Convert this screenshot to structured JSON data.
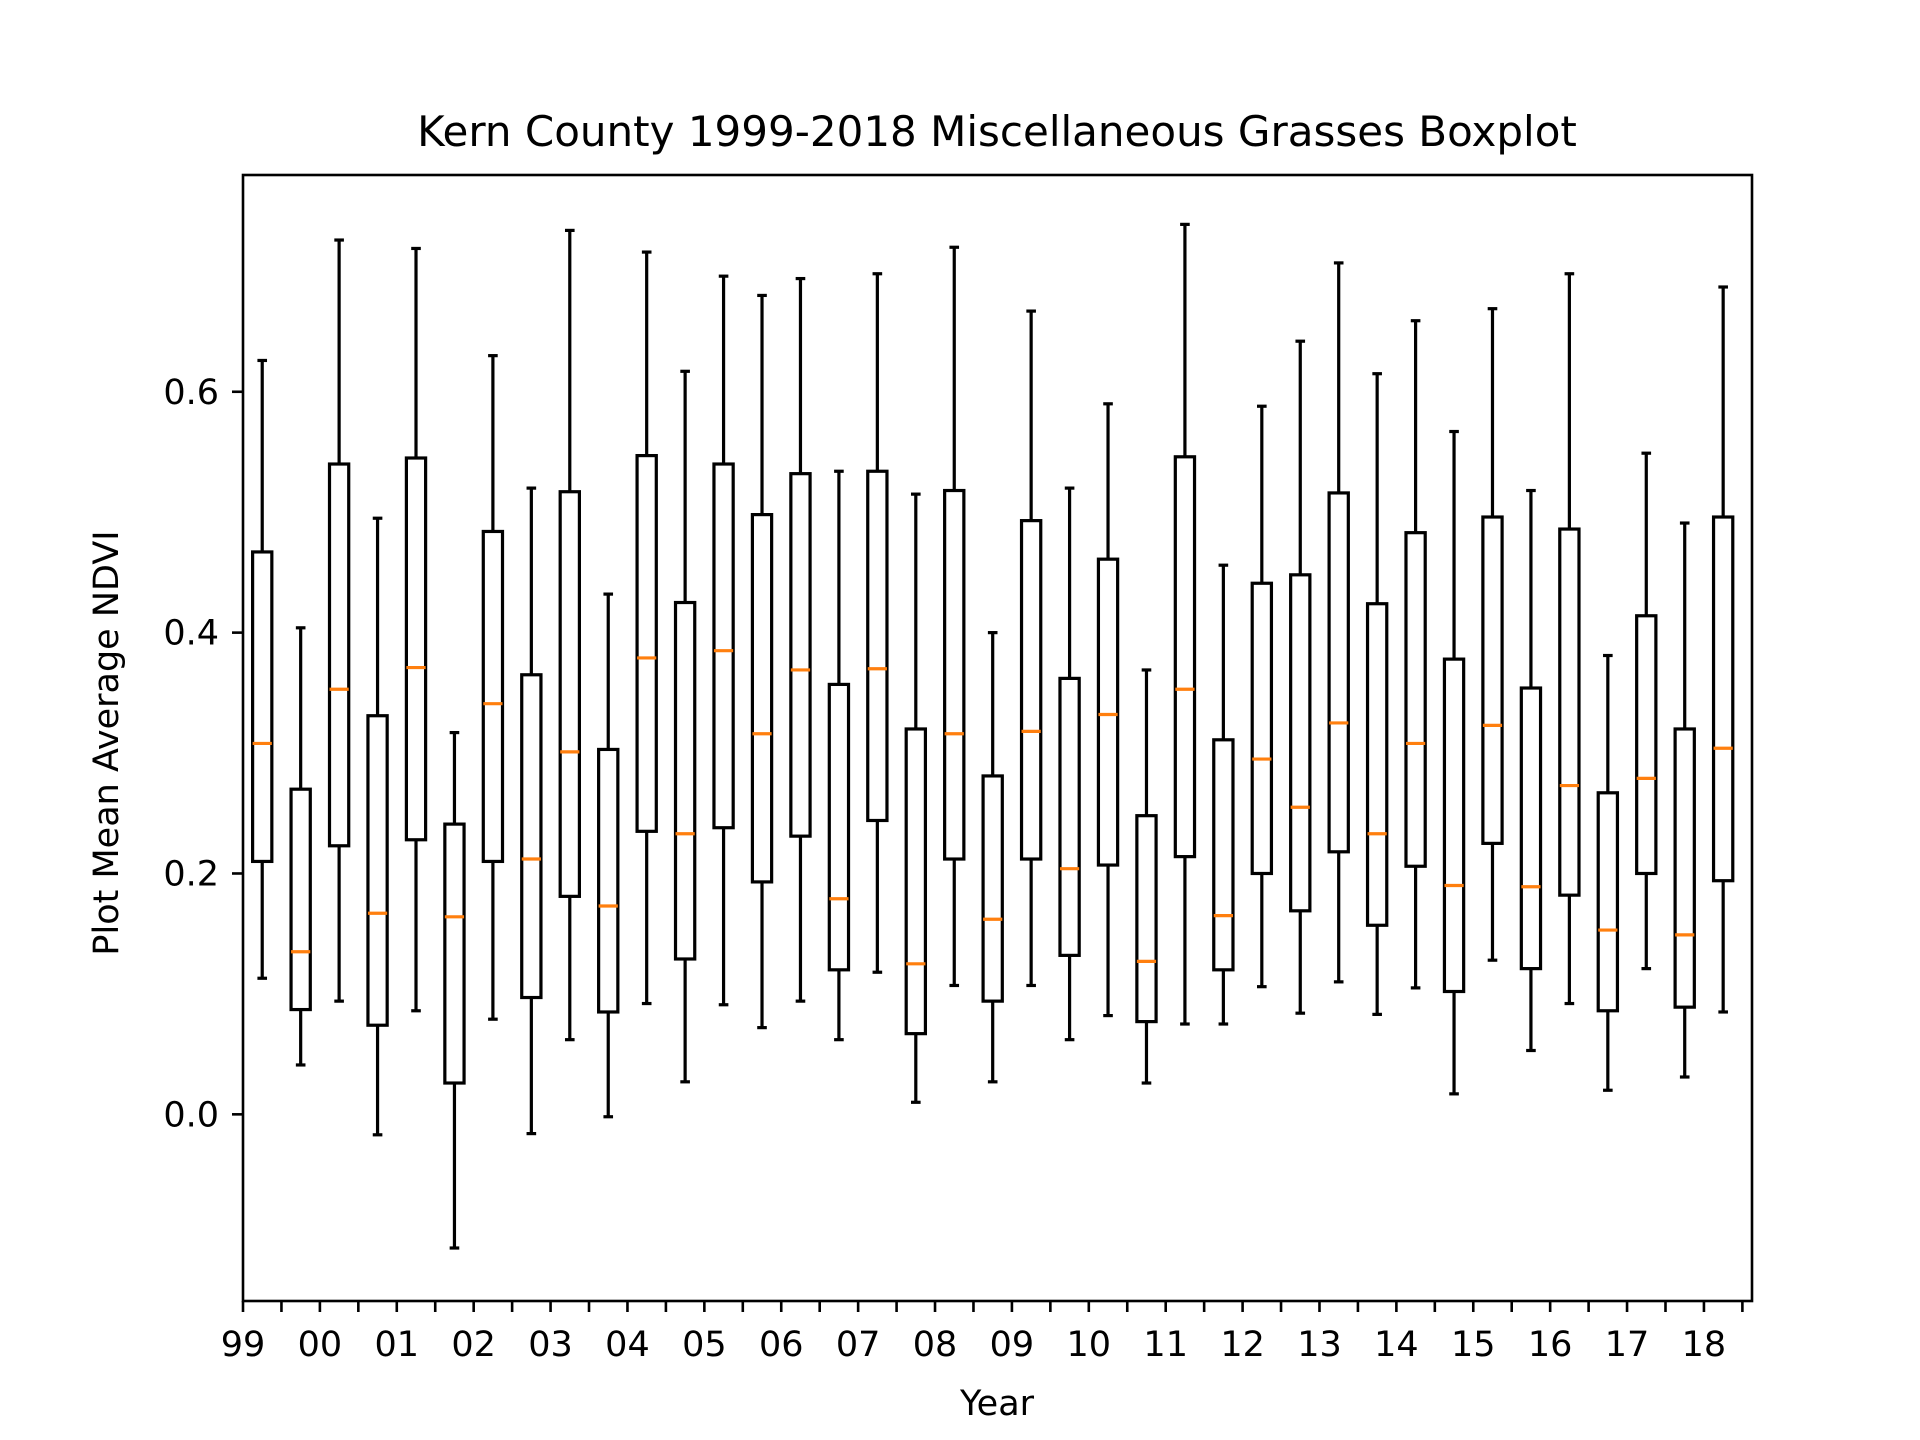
{
  "chart_data": {
    "type": "boxplot",
    "title": "Kern County 1999-2018 Miscellaneous Grasses Boxplot",
    "xlabel": "Year",
    "ylabel": "Plot Mean Average NDVI",
    "ylim": [
      -0.155,
      0.78
    ],
    "xlim": [
      0.5,
      39.75
    ],
    "yticks": [
      0.0,
      0.2,
      0.4,
      0.6
    ],
    "ytick_labels": [
      "0.0",
      "0.2",
      "0.4",
      "0.6"
    ],
    "xtick_labels": [
      "99",
      "00",
      "01",
      "02",
      "03",
      "04",
      "05",
      "06",
      "07",
      "08",
      "09",
      "10",
      "11",
      "12",
      "13",
      "14",
      "15",
      "16",
      "17",
      "18"
    ],
    "grid": false,
    "colors": {
      "box": "#000000",
      "median": "#ff7f0e",
      "background": "#ffffff"
    },
    "boxes": [
      {
        "whislo": 0.113,
        "q1": 0.21,
        "med": 0.308,
        "q3": 0.467,
        "whishi": 0.626
      },
      {
        "whislo": 0.041,
        "q1": 0.087,
        "med": 0.135,
        "q3": 0.27,
        "whishi": 0.404
      },
      {
        "whislo": 0.094,
        "q1": 0.223,
        "med": 0.353,
        "q3": 0.54,
        "whishi": 0.726
      },
      {
        "whislo": -0.017,
        "q1": 0.074,
        "med": 0.167,
        "q3": 0.331,
        "whishi": 0.495
      },
      {
        "whislo": 0.086,
        "q1": 0.228,
        "med": 0.371,
        "q3": 0.545,
        "whishi": 0.719
      },
      {
        "whislo": -0.111,
        "q1": 0.026,
        "med": 0.164,
        "q3": 0.241,
        "whishi": 0.317
      },
      {
        "whislo": 0.079,
        "q1": 0.21,
        "med": 0.341,
        "q3": 0.484,
        "whishi": 0.63
      },
      {
        "whislo": -0.016,
        "q1": 0.097,
        "med": 0.212,
        "q3": 0.365,
        "whishi": 0.52
      },
      {
        "whislo": 0.062,
        "q1": 0.181,
        "med": 0.301,
        "q3": 0.517,
        "whishi": 0.734
      },
      {
        "whislo": -0.002,
        "q1": 0.085,
        "med": 0.173,
        "q3": 0.303,
        "whishi": 0.432
      },
      {
        "whislo": 0.092,
        "q1": 0.235,
        "med": 0.379,
        "q3": 0.547,
        "whishi": 0.716
      },
      {
        "whislo": 0.027,
        "q1": 0.129,
        "med": 0.233,
        "q3": 0.425,
        "whishi": 0.617
      },
      {
        "whislo": 0.091,
        "q1": 0.238,
        "med": 0.385,
        "q3": 0.54,
        "whishi": 0.696
      },
      {
        "whislo": 0.072,
        "q1": 0.193,
        "med": 0.316,
        "q3": 0.498,
        "whishi": 0.68
      },
      {
        "whislo": 0.094,
        "q1": 0.231,
        "med": 0.369,
        "q3": 0.532,
        "whishi": 0.694
      },
      {
        "whislo": 0.062,
        "q1": 0.12,
        "med": 0.179,
        "q3": 0.357,
        "whishi": 0.534
      },
      {
        "whislo": 0.118,
        "q1": 0.244,
        "med": 0.37,
        "q3": 0.534,
        "whishi": 0.698
      },
      {
        "whislo": 0.01,
        "q1": 0.067,
        "med": 0.125,
        "q3": 0.32,
        "whishi": 0.515
      },
      {
        "whislo": 0.107,
        "q1": 0.212,
        "med": 0.316,
        "q3": 0.518,
        "whishi": 0.72
      },
      {
        "whislo": 0.027,
        "q1": 0.094,
        "med": 0.162,
        "q3": 0.281,
        "whishi": 0.4
      },
      {
        "whislo": 0.107,
        "q1": 0.212,
        "med": 0.318,
        "q3": 0.493,
        "whishi": 0.667
      },
      {
        "whislo": 0.062,
        "q1": 0.132,
        "med": 0.204,
        "q3": 0.362,
        "whishi": 0.52
      },
      {
        "whislo": 0.082,
        "q1": 0.207,
        "med": 0.332,
        "q3": 0.461,
        "whishi": 0.59
      },
      {
        "whislo": 0.026,
        "q1": 0.077,
        "med": 0.127,
        "q3": 0.248,
        "whishi": 0.369
      },
      {
        "whislo": 0.075,
        "q1": 0.214,
        "med": 0.353,
        "q3": 0.546,
        "whishi": 0.739
      },
      {
        "whislo": 0.075,
        "q1": 0.12,
        "med": 0.165,
        "q3": 0.311,
        "whishi": 0.456
      },
      {
        "whislo": 0.106,
        "q1": 0.2,
        "med": 0.295,
        "q3": 0.441,
        "whishi": 0.588
      },
      {
        "whislo": 0.084,
        "q1": 0.169,
        "med": 0.255,
        "q3": 0.448,
        "whishi": 0.642
      },
      {
        "whislo": 0.11,
        "q1": 0.218,
        "med": 0.325,
        "q3": 0.516,
        "whishi": 0.707
      },
      {
        "whislo": 0.083,
        "q1": 0.157,
        "med": 0.233,
        "q3": 0.424,
        "whishi": 0.615
      },
      {
        "whislo": 0.105,
        "q1": 0.206,
        "med": 0.308,
        "q3": 0.483,
        "whishi": 0.659
      },
      {
        "whislo": 0.017,
        "q1": 0.102,
        "med": 0.19,
        "q3": 0.378,
        "whishi": 0.567
      },
      {
        "whislo": 0.128,
        "q1": 0.225,
        "med": 0.323,
        "q3": 0.496,
        "whishi": 0.669
      },
      {
        "whislo": 0.053,
        "q1": 0.121,
        "med": 0.189,
        "q3": 0.354,
        "whishi": 0.518
      },
      {
        "whislo": 0.092,
        "q1": 0.182,
        "med": 0.273,
        "q3": 0.486,
        "whishi": 0.698
      },
      {
        "whislo": 0.02,
        "q1": 0.086,
        "med": 0.153,
        "q3": 0.267,
        "whishi": 0.381
      },
      {
        "whislo": 0.121,
        "q1": 0.2,
        "med": 0.279,
        "q3": 0.414,
        "whishi": 0.549
      },
      {
        "whislo": 0.031,
        "q1": 0.089,
        "med": 0.149,
        "q3": 0.32,
        "whishi": 0.491
      },
      {
        "whislo": 0.085,
        "q1": 0.194,
        "med": 0.304,
        "q3": 0.496,
        "whishi": 0.687
      }
    ]
  }
}
